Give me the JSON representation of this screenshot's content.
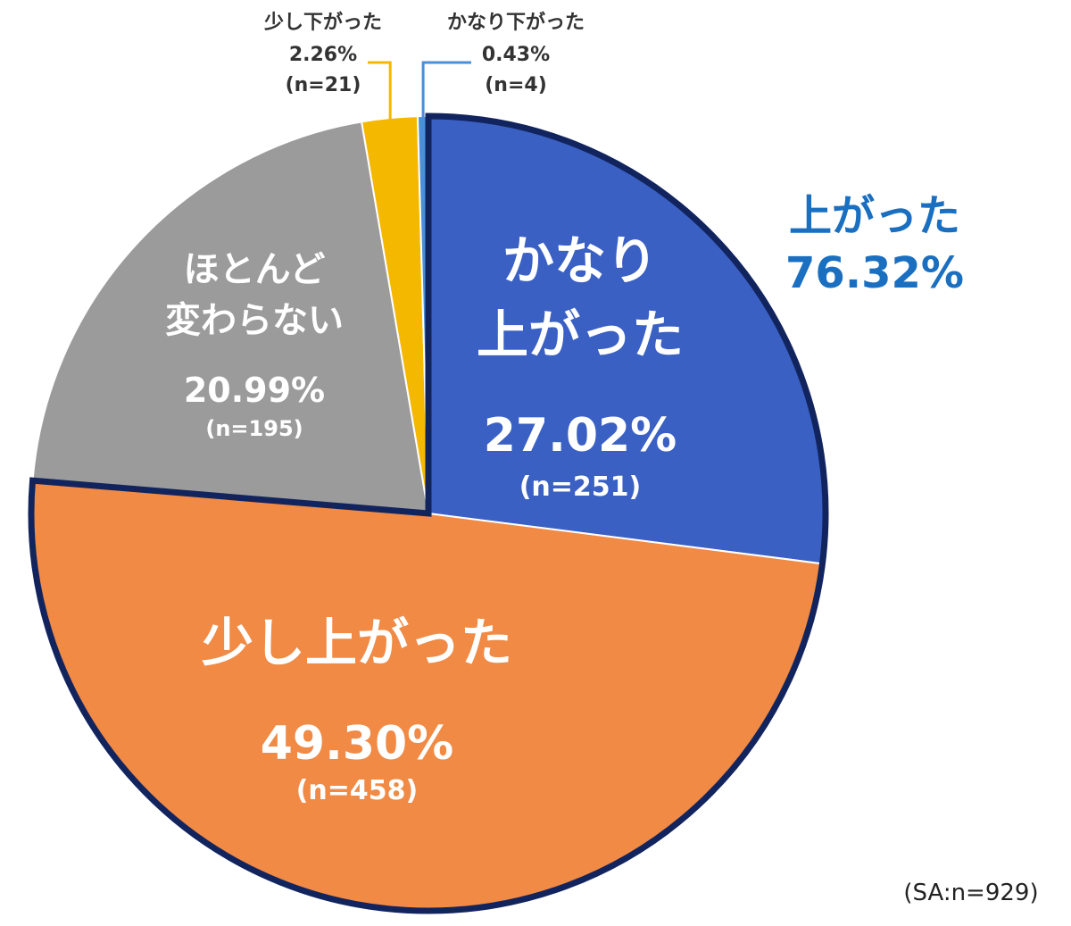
{
  "chart_data": {
    "type": "pie",
    "start_angle_deg": 0,
    "direction": "clockwise",
    "slices": [
      {
        "key": "s1",
        "label_lines": [
          "かなり",
          "上がった"
        ],
        "percent": 27.02,
        "percent_text": "27.02%",
        "n_text": "(n=251)",
        "color": "#3a60c4"
      },
      {
        "key": "s2",
        "label_lines": [
          "少し上がった"
        ],
        "percent": 49.3,
        "percent_text": "49.30%",
        "n_text": "(n=458)",
        "color": "#f08a45"
      },
      {
        "key": "s3",
        "label_lines": [
          "ほとんど",
          "変わらない"
        ],
        "percent": 20.99,
        "percent_text": "20.99%",
        "n_text": "(n=195)",
        "color": "#9b9b9b"
      },
      {
        "key": "s4",
        "label_lines": [
          "少し下がった"
        ],
        "percent": 2.26,
        "percent_text": "2.26%",
        "n_text": "(n=21)",
        "color": "#f5b800"
      },
      {
        "key": "s5",
        "label_lines": [
          "かなり下がった"
        ],
        "percent": 0.43,
        "percent_text": "0.43%",
        "n_text": "(n=4)",
        "color": "#4a8fd8"
      }
    ],
    "group_highlight": {
      "label": "上がった",
      "value_text": "76.32%",
      "percent": 76.32,
      "color": "#1a6fc0",
      "outline_color": "#12245e"
    },
    "label_color": "#ffffff",
    "footnote": "(SA:n=929)"
  }
}
